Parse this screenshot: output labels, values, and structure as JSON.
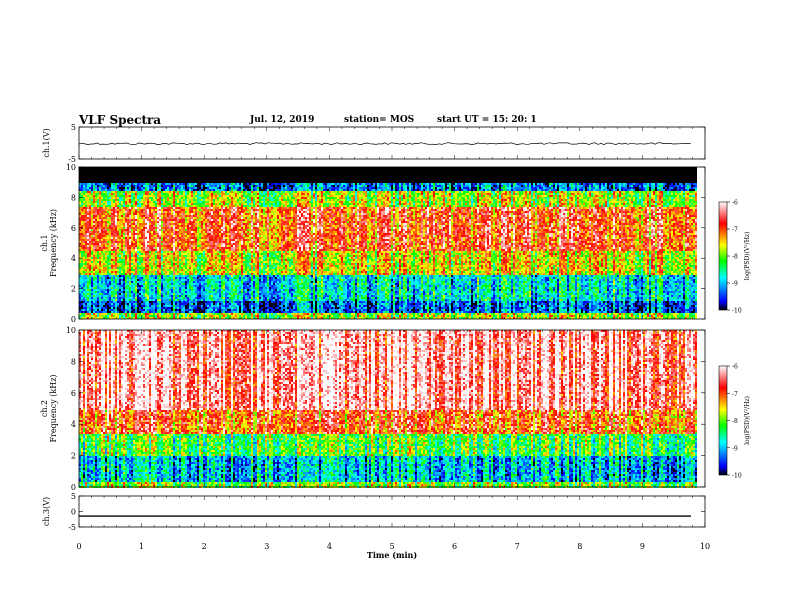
{
  "header": {
    "title": "VLF Spectra",
    "date": "Jul. 12, 2019",
    "station": "station= MOS",
    "start": "start UT = 15: 20: 1"
  },
  "chart_data": [
    {
      "type": "line",
      "panel": "ch1-waveform",
      "ylabel": "ch.1(V)",
      "ylim": [
        -5,
        5
      ],
      "yticks": [
        5,
        -5
      ],
      "xlim": [
        0,
        10
      ],
      "series": [
        {
          "values_note_x": [
            0,
            9.8
          ],
          "values": [
            -0.2,
            -0.2
          ]
        }
      ]
    },
    {
      "type": "heatmap",
      "panel": "ch1-spectrogram",
      "ylabel": "ch.1\nFrequency (kHz)",
      "ylim": [
        0,
        10
      ],
      "yticks": [
        0,
        2,
        4,
        6,
        8,
        10
      ],
      "xlim": [
        0,
        10
      ],
      "data_extent_x": [
        0,
        9.85
      ],
      "bands": [
        {
          "from": 0.0,
          "to": 0.4,
          "level": -7.8
        },
        {
          "from": 0.4,
          "to": 1.2,
          "level": -9.4
        },
        {
          "from": 1.2,
          "to": 3.0,
          "level": -8.8
        },
        {
          "from": 3.0,
          "to": 4.5,
          "level": -7.6
        },
        {
          "from": 4.5,
          "to": 7.5,
          "level": -6.9
        },
        {
          "from": 7.5,
          "to": 8.5,
          "level": -7.8
        },
        {
          "from": 8.5,
          "to": 9.0,
          "level": -9.3
        },
        {
          "from": 9.0,
          "to": 10.0,
          "level": -10
        }
      ],
      "colorbar": {
        "label": "log(PSD)(V²/Hz)",
        "min": -10,
        "max": -6,
        "ticks": [
          -6,
          -7,
          -8,
          -9,
          -10
        ]
      }
    },
    {
      "type": "heatmap",
      "panel": "ch2-spectrogram",
      "ylabel": "ch.2\nFrequency (kHz)",
      "ylim": [
        0,
        10
      ],
      "yticks": [
        0,
        2,
        4,
        6,
        8,
        10
      ],
      "xlim": [
        0,
        10
      ],
      "data_extent_x": [
        0,
        9.85
      ],
      "bands": [
        {
          "from": 0.0,
          "to": 0.4,
          "level": -8.0
        },
        {
          "from": 0.4,
          "to": 2.0,
          "level": -9.0
        },
        {
          "from": 2.0,
          "to": 3.5,
          "level": -8.2
        },
        {
          "from": 3.5,
          "to": 5.0,
          "level": -7.0
        },
        {
          "from": 5.0,
          "to": 10.0,
          "level": -6.3
        }
      ],
      "colorbar": {
        "label": "log(PSD)(V²/Hz)",
        "min": -10,
        "max": -6,
        "ticks": [
          -6,
          -7,
          -8,
          -9,
          -10
        ]
      }
    },
    {
      "type": "line",
      "panel": "ch3-waveform",
      "ylabel": "ch.3(V)",
      "ylim": [
        -5,
        5
      ],
      "yticks": [
        5,
        0,
        -5
      ],
      "xlim": [
        0,
        10
      ],
      "xlabel": "Time (min)",
      "xticks": [
        0,
        1,
        2,
        3,
        4,
        5,
        6,
        7,
        8,
        9,
        10
      ],
      "series": [
        {
          "values_note_x": [
            0,
            9.8
          ],
          "values": [
            -1.5,
            -1.5
          ]
        }
      ]
    }
  ],
  "colors": {
    "colormap": [
      "#ffffff",
      "#ff0000",
      "#ffff00",
      "#00ff00",
      "#00ffff",
      "#0000ff",
      "#000000"
    ]
  }
}
